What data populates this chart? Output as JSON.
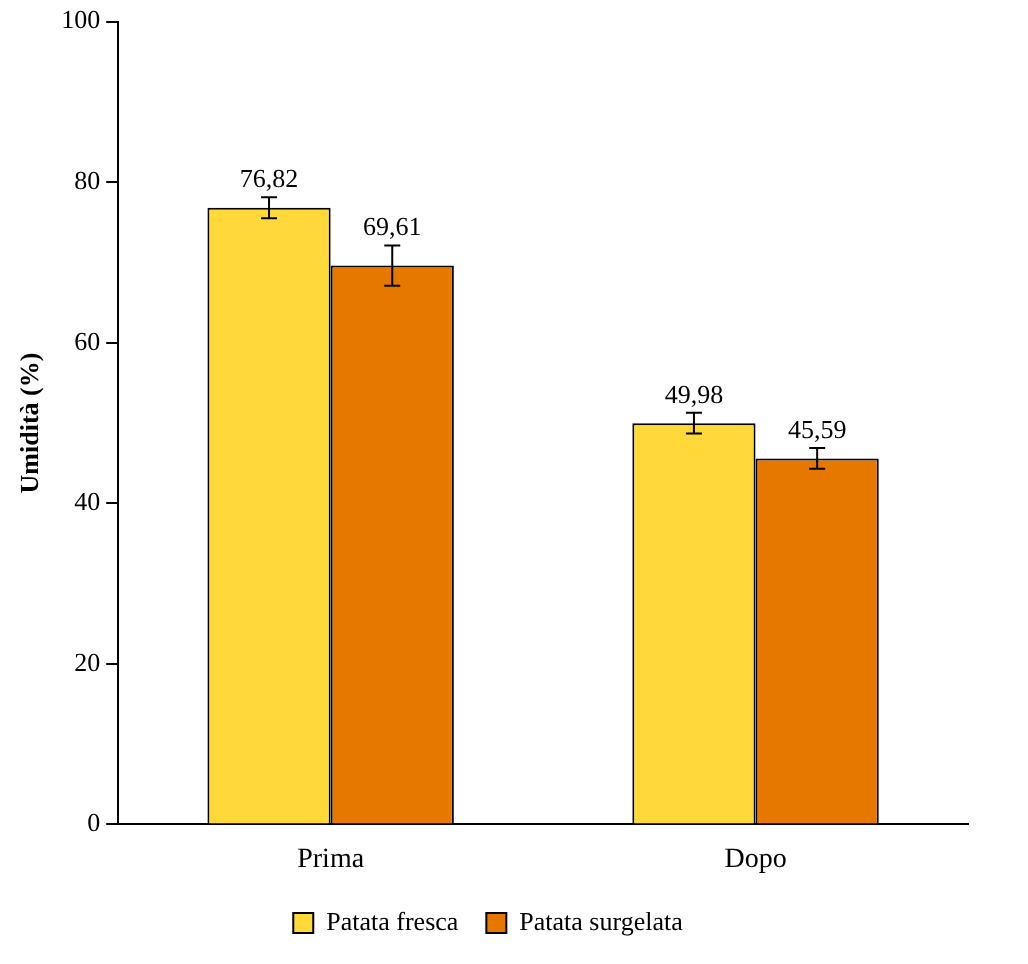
{
  "chart_data": {
    "type": "bar",
    "ylabel": "Umidità (%)",
    "categories": [
      "Prima",
      "Dopo"
    ],
    "series": [
      {
        "name": "Patata fresca",
        "color": "#ffd83a",
        "values": [
          76.82,
          49.98
        ],
        "errors": [
          1.3,
          1.3
        ],
        "value_labels": [
          "76,82",
          "49,98"
        ]
      },
      {
        "name": "Patata surgelata",
        "color": "#e67800",
        "values": [
          69.61,
          45.59
        ],
        "errors": [
          2.5,
          1.3
        ],
        "value_labels": [
          "69,61",
          "45,59"
        ]
      }
    ],
    "ylim": [
      0,
      100
    ],
    "yticks": [
      0,
      20,
      40,
      60,
      80,
      100
    ],
    "grid": false,
    "legend": "bottom"
  }
}
